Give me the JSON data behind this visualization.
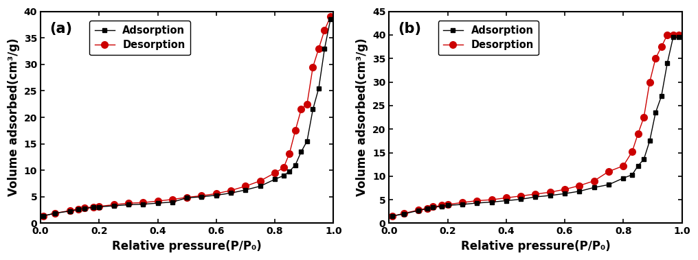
{
  "panel_a": {
    "label": "(a)",
    "adsorption_x": [
      0.01,
      0.05,
      0.1,
      0.13,
      0.15,
      0.18,
      0.2,
      0.25,
      0.3,
      0.35,
      0.4,
      0.45,
      0.5,
      0.55,
      0.6,
      0.65,
      0.7,
      0.75,
      0.8,
      0.83,
      0.85,
      0.87,
      0.89,
      0.91,
      0.93,
      0.95,
      0.97,
      0.99
    ],
    "adsorption_y": [
      1.4,
      1.9,
      2.3,
      2.6,
      2.8,
      3.0,
      3.1,
      3.3,
      3.5,
      3.6,
      3.8,
      4.0,
      4.8,
      5.0,
      5.3,
      5.7,
      6.3,
      7.0,
      8.3,
      9.0,
      9.8,
      11.0,
      13.5,
      15.5,
      21.5,
      25.5,
      33.0,
      38.5
    ],
    "desorption_x": [
      0.01,
      0.05,
      0.1,
      0.13,
      0.15,
      0.18,
      0.2,
      0.25,
      0.3,
      0.35,
      0.4,
      0.45,
      0.5,
      0.55,
      0.6,
      0.65,
      0.7,
      0.75,
      0.8,
      0.83,
      0.85,
      0.87,
      0.89,
      0.91,
      0.93,
      0.95,
      0.97,
      0.99
    ],
    "desorption_y": [
      1.4,
      1.9,
      2.4,
      2.7,
      2.9,
      3.1,
      3.2,
      3.5,
      3.8,
      3.9,
      4.2,
      4.5,
      4.9,
      5.2,
      5.6,
      6.2,
      7.0,
      8.0,
      9.5,
      10.5,
      13.2,
      17.5,
      21.5,
      22.5,
      29.5,
      33.0,
      36.5,
      39.0
    ],
    "ylim": [
      0,
      40
    ],
    "yticks": [
      0,
      5,
      10,
      15,
      20,
      25,
      30,
      35,
      40
    ],
    "xlim": [
      0.0,
      1.0
    ],
    "xticks": [
      0.0,
      0.2,
      0.4,
      0.6,
      0.8,
      1.0
    ],
    "ylabel": "Volume adsorbed(cm³/g)",
    "xlabel": "Relative pressure(P/P₀)"
  },
  "panel_b": {
    "label": "(b)",
    "adsorption_x": [
      0.01,
      0.05,
      0.1,
      0.13,
      0.15,
      0.18,
      0.2,
      0.25,
      0.3,
      0.35,
      0.4,
      0.45,
      0.5,
      0.55,
      0.6,
      0.65,
      0.7,
      0.75,
      0.8,
      0.83,
      0.85,
      0.87,
      0.89,
      0.91,
      0.93,
      0.95,
      0.97,
      0.99
    ],
    "adsorption_y": [
      1.5,
      2.0,
      2.7,
      3.1,
      3.4,
      3.6,
      3.8,
      4.0,
      4.3,
      4.5,
      4.8,
      5.1,
      5.6,
      5.9,
      6.3,
      6.8,
      7.6,
      8.2,
      9.6,
      10.3,
      12.2,
      13.6,
      17.5,
      23.5,
      27.0,
      34.0,
      39.5,
      39.5
    ],
    "desorption_x": [
      0.01,
      0.05,
      0.1,
      0.13,
      0.15,
      0.18,
      0.2,
      0.25,
      0.3,
      0.35,
      0.4,
      0.45,
      0.5,
      0.55,
      0.6,
      0.65,
      0.7,
      0.75,
      0.8,
      0.83,
      0.85,
      0.87,
      0.89,
      0.91,
      0.93,
      0.95,
      0.97,
      0.99
    ],
    "desorption_y": [
      1.5,
      2.1,
      2.8,
      3.2,
      3.5,
      3.8,
      4.0,
      4.4,
      4.8,
      5.0,
      5.4,
      5.8,
      6.2,
      6.6,
      7.2,
      8.0,
      9.0,
      11.0,
      12.2,
      15.2,
      19.0,
      22.5,
      30.0,
      35.0,
      37.5,
      40.0,
      40.0,
      40.0
    ],
    "ylim": [
      0,
      45
    ],
    "yticks": [
      0,
      5,
      10,
      15,
      20,
      25,
      30,
      35,
      40,
      45
    ],
    "xlim": [
      0.0,
      1.0
    ],
    "xticks": [
      0.0,
      0.2,
      0.4,
      0.6,
      0.8,
      1.0
    ],
    "ylabel": "Volume adsorbed(cm³/g)",
    "xlabel": "Relative pressure(P/P₀)"
  },
  "adsorption_color": "#000000",
  "desorption_color": "#cc0000",
  "adsorption_marker": "s",
  "desorption_marker": "o",
  "line_color_ads": "#000000",
  "line_color_des": "#cc0000",
  "marker_size": 5,
  "desorption_marker_size": 7,
  "legend_fontsize": 10.5,
  "axis_label_fontsize": 12,
  "tick_fontsize": 10,
  "panel_label_fontsize": 15,
  "background_color": "#ffffff",
  "linewidth": 1.0
}
